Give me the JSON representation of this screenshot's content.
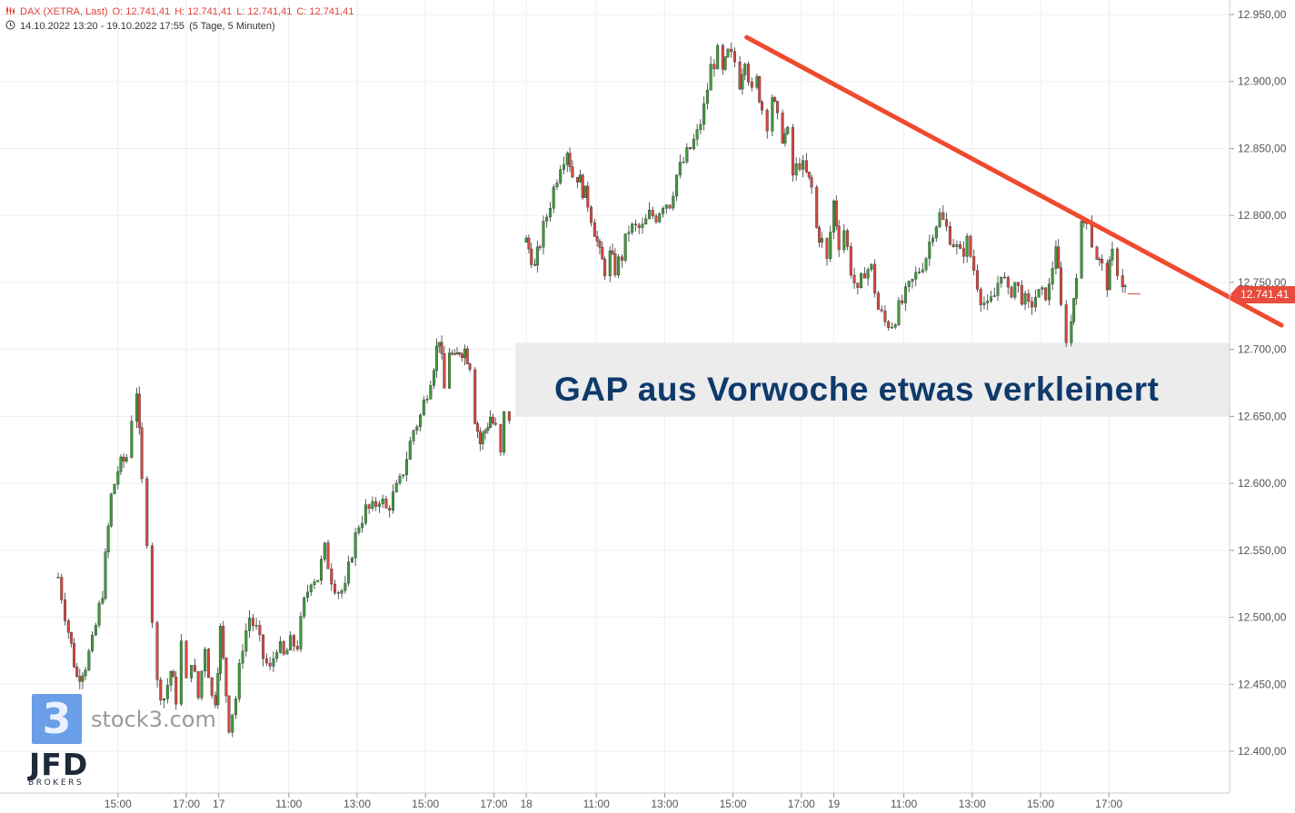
{
  "header": {
    "instrument_icon": "candlestick-icon",
    "instrument": "DAX (XETRA, Last)",
    "open": "O: 12.741,41",
    "high": "H: 12.741,41",
    "low": "L: 12.741,41",
    "close": "C: 12.741,41",
    "clock_icon": "clock-icon",
    "range": "14.10.2022 13:20 - 19.10.2022 17:55",
    "interval": "(5 Tage, 5 Minuten)"
  },
  "annotation": {
    "gap_text": "GAP aus Vorwoche etwas verkleinert"
  },
  "last_price_tag": "12.741,41",
  "logos": {
    "stock3_mark": "3",
    "stock3_text": "stock3.com",
    "broker_name": "JFD",
    "broker_sub": "BROKERS"
  },
  "colors": {
    "up": "#3d9b3a",
    "down": "#d8473d",
    "trendline": "#f04a2e",
    "gap_box": "#ececec",
    "grid": "#eeeeee"
  },
  "chart_data": {
    "type": "candlestick",
    "title": "DAX (XETRA, Last)",
    "interval": "5 Minuten",
    "ylim": [
      12400,
      12950
    ],
    "y_ticks": [
      "12.400,00",
      "12.450,00",
      "12.500,00",
      "12.550,00",
      "12.600,00",
      "12.650,00",
      "12.700,00",
      "12.750,00",
      "12.800,00",
      "12.850,00",
      "12.900,00",
      "12.950,00"
    ],
    "y_tick_values": [
      12400,
      12450,
      12500,
      12550,
      12600,
      12650,
      12700,
      12750,
      12800,
      12850,
      12900,
      12950
    ],
    "x_ticks": [
      {
        "t": 1.75,
        "label": "15:00"
      },
      {
        "t": 3.75,
        "label": "17:00"
      },
      {
        "t": 4.7,
        "label": "17"
      },
      {
        "t": 6.75,
        "label": "11:00"
      },
      {
        "t": 8.75,
        "label": "13:00"
      },
      {
        "t": 10.75,
        "label": "15:00"
      },
      {
        "t": 12.75,
        "label": "17:00"
      },
      {
        "t": 13.7,
        "label": "18"
      },
      {
        "t": 15.75,
        "label": "11:00"
      },
      {
        "t": 17.75,
        "label": "13:00"
      },
      {
        "t": 19.75,
        "label": "15:00"
      },
      {
        "t": 21.75,
        "label": "17:00"
      },
      {
        "t": 22.7,
        "label": "19"
      },
      {
        "t": 24.75,
        "label": "11:00"
      },
      {
        "t": 26.75,
        "label": "13:00"
      },
      {
        "t": 28.75,
        "label": "15:00"
      },
      {
        "t": 30.75,
        "label": "17:00"
      }
    ],
    "close_path": [
      [
        0.0,
        12530
      ],
      [
        0.3,
        12490
      ],
      [
        0.55,
        12455
      ],
      [
        0.8,
        12465
      ],
      [
        1.0,
        12480
      ],
      [
        1.3,
        12520
      ],
      [
        1.55,
        12590
      ],
      [
        1.75,
        12610
      ],
      [
        2.0,
        12620
      ],
      [
        2.15,
        12650
      ],
      [
        2.3,
        12670
      ],
      [
        2.45,
        12600
      ],
      [
        2.6,
        12560
      ],
      [
        2.75,
        12500
      ],
      [
        2.9,
        12450
      ],
      [
        3.1,
        12440
      ],
      [
        3.3,
        12460
      ],
      [
        3.45,
        12440
      ],
      [
        3.6,
        12480
      ],
      [
        3.75,
        12450
      ],
      [
        3.9,
        12470
      ],
      [
        4.1,
        12440
      ],
      [
        4.3,
        12480
      ],
      [
        4.5,
        12440
      ],
      [
        4.6,
        12440
      ],
      [
        4.75,
        12490
      ],
      [
        5.0,
        12420
      ],
      [
        5.2,
        12440
      ],
      [
        5.4,
        12480
      ],
      [
        5.6,
        12500
      ],
      [
        5.8,
        12490
      ],
      [
        6.0,
        12470
      ],
      [
        6.2,
        12460
      ],
      [
        6.4,
        12480
      ],
      [
        6.6,
        12470
      ],
      [
        6.8,
        12480
      ],
      [
        7.0,
        12480
      ],
      [
        7.2,
        12510
      ],
      [
        7.4,
        12530
      ],
      [
        7.6,
        12530
      ],
      [
        7.8,
        12550
      ],
      [
        8.0,
        12530
      ],
      [
        8.2,
        12520
      ],
      [
        8.4,
        12520
      ],
      [
        8.6,
        12550
      ],
      [
        8.8,
        12570
      ],
      [
        9.0,
        12580
      ],
      [
        9.2,
        12580
      ],
      [
        9.4,
        12590
      ],
      [
        9.6,
        12580
      ],
      [
        9.8,
        12590
      ],
      [
        10.0,
        12600
      ],
      [
        10.2,
        12620
      ],
      [
        10.4,
        12640
      ],
      [
        10.6,
        12650
      ],
      [
        10.8,
        12670
      ],
      [
        11.0,
        12690
      ],
      [
        11.15,
        12710
      ],
      [
        11.3,
        12670
      ],
      [
        11.45,
        12700
      ],
      [
        11.6,
        12690
      ],
      [
        11.75,
        12700
      ],
      [
        11.9,
        12700
      ],
      [
        12.05,
        12690
      ],
      [
        12.2,
        12650
      ],
      [
        12.35,
        12630
      ],
      [
        12.5,
        12640
      ],
      [
        12.65,
        12650
      ],
      [
        12.8,
        12640
      ],
      [
        12.95,
        12620
      ],
      [
        13.05,
        12650
      ],
      [
        13.2,
        12650
      ],
      [
        13.3,
        12650
      ],
      [
        13.7,
        12780
      ],
      [
        13.85,
        12770
      ],
      [
        13.95,
        12760
      ],
      [
        14.1,
        12780
      ],
      [
        14.3,
        12800
      ],
      [
        14.5,
        12820
      ],
      [
        14.7,
        12840
      ],
      [
        14.9,
        12850
      ],
      [
        15.05,
        12830
      ],
      [
        15.2,
        12830
      ],
      [
        15.35,
        12820
      ],
      [
        15.5,
        12810
      ],
      [
        15.7,
        12790
      ],
      [
        15.85,
        12770
      ],
      [
        16.0,
        12760
      ],
      [
        16.15,
        12770
      ],
      [
        16.3,
        12760
      ],
      [
        16.5,
        12770
      ],
      [
        16.7,
        12790
      ],
      [
        16.9,
        12790
      ],
      [
        17.1,
        12790
      ],
      [
        17.3,
        12800
      ],
      [
        17.5,
        12800
      ],
      [
        17.7,
        12810
      ],
      [
        17.9,
        12810
      ],
      [
        18.1,
        12830
      ],
      [
        18.3,
        12840
      ],
      [
        18.5,
        12850
      ],
      [
        18.7,
        12860
      ],
      [
        18.9,
        12880
      ],
      [
        19.1,
        12910
      ],
      [
        19.3,
        12920
      ],
      [
        19.45,
        12905
      ],
      [
        19.6,
        12920
      ],
      [
        19.8,
        12915
      ],
      [
        19.95,
        12900
      ],
      [
        20.1,
        12920
      ],
      [
        20.3,
        12890
      ],
      [
        20.45,
        12900
      ],
      [
        20.6,
        12880
      ],
      [
        20.75,
        12870
      ],
      [
        20.9,
        12890
      ],
      [
        21.05,
        12870
      ],
      [
        21.2,
        12860
      ],
      [
        21.35,
        12860
      ],
      [
        21.5,
        12830
      ],
      [
        21.7,
        12840
      ],
      [
        21.9,
        12830
      ],
      [
        22.05,
        12820
      ],
      [
        22.2,
        12790
      ],
      [
        22.35,
        12780
      ],
      [
        22.5,
        12765
      ],
      [
        22.7,
        12810
      ],
      [
        22.85,
        12780
      ],
      [
        23.0,
        12790
      ],
      [
        23.2,
        12760
      ],
      [
        23.4,
        12740
      ],
      [
        23.6,
        12760
      ],
      [
        23.8,
        12760
      ],
      [
        24.0,
        12730
      ],
      [
        24.2,
        12720
      ],
      [
        24.4,
        12720
      ],
      [
        24.6,
        12730
      ],
      [
        24.8,
        12740
      ],
      [
        25.0,
        12750
      ],
      [
        25.2,
        12760
      ],
      [
        25.4,
        12770
      ],
      [
        25.6,
        12790
      ],
      [
        25.8,
        12800
      ],
      [
        26.0,
        12790
      ],
      [
        26.2,
        12780
      ],
      [
        26.4,
        12770
      ],
      [
        26.6,
        12780
      ],
      [
        26.8,
        12760
      ],
      [
        27.0,
        12740
      ],
      [
        27.2,
        12730
      ],
      [
        27.4,
        12740
      ],
      [
        27.6,
        12760
      ],
      [
        27.8,
        12740
      ],
      [
        28.0,
        12750
      ],
      [
        28.2,
        12740
      ],
      [
        28.4,
        12730
      ],
      [
        28.6,
        12740
      ],
      [
        28.8,
        12740
      ],
      [
        29.0,
        12745
      ],
      [
        29.2,
        12780
      ],
      [
        29.35,
        12730
      ],
      [
        29.5,
        12710
      ],
      [
        29.65,
        12720
      ],
      [
        29.8,
        12760
      ],
      [
        29.95,
        12790
      ],
      [
        30.1,
        12800
      ],
      [
        30.25,
        12780
      ],
      [
        30.4,
        12770
      ],
      [
        30.55,
        12760
      ],
      [
        30.7,
        12750
      ],
      [
        30.85,
        12770
      ],
      [
        31.0,
        12760
      ],
      [
        31.15,
        12750
      ],
      [
        31.3,
        12741.41
      ]
    ],
    "trendline": [
      [
        20.15,
        12933
      ],
      [
        35.8,
        12718
      ]
    ],
    "gap_zone": {
      "y_low": 12650,
      "y_high": 12705,
      "from_t": 13.3
    },
    "last_close": 12741.41
  }
}
